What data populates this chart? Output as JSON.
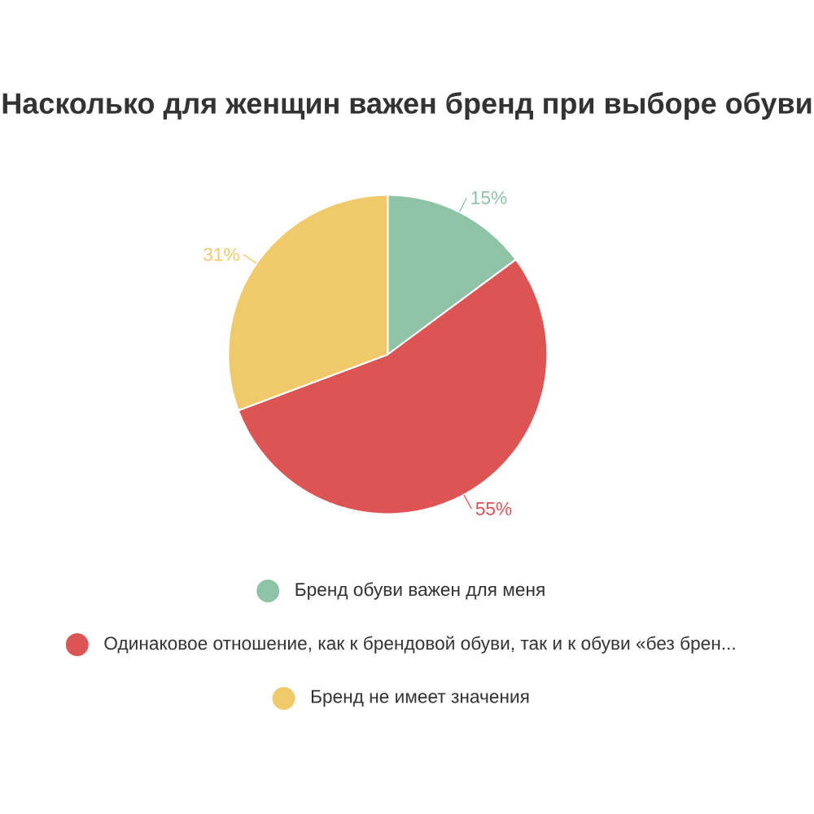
{
  "chart_data": {
    "type": "pie",
    "title": "Насколько для женщин важен бренд при выборе обуви",
    "categories": [
      "Бренд обуви важен для меня",
      "Одинаковое отношение, как к брендовой обуви, так и к обуви «без брен...",
      "Бренд не имеет значения"
    ],
    "values": [
      15,
      55,
      31
    ],
    "value_labels": [
      "15%",
      "55%",
      "31%"
    ],
    "colors": [
      "#8fc3a5",
      "#dc5454",
      "#efc96a"
    ],
    "legend": "bottom"
  }
}
